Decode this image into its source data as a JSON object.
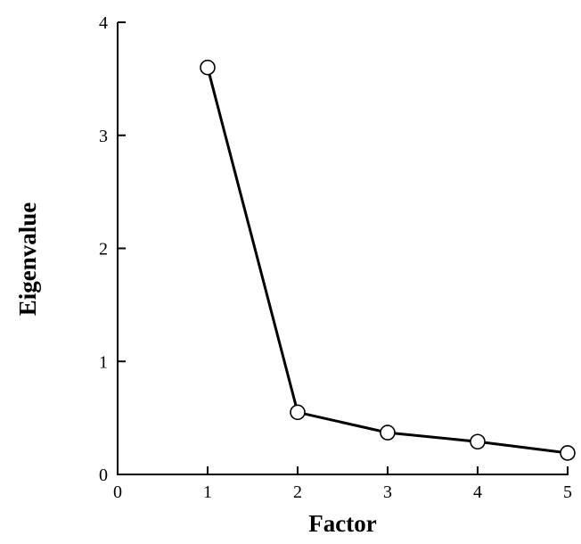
{
  "chart_data": {
    "type": "line",
    "title": "",
    "xlabel": "Factor",
    "ylabel": "Eigenvalue",
    "xlim": [
      0,
      5
    ],
    "ylim": [
      0,
      4
    ],
    "xticks": [
      "0",
      "1",
      "2",
      "3",
      "4",
      "5"
    ],
    "yticks": [
      "0",
      "1",
      "2",
      "3",
      "4"
    ],
    "grid": false,
    "marker": "open-circle",
    "series": [
      {
        "x": [
          1,
          2,
          3,
          4,
          5
        ],
        "y": [
          3.6,
          0.55,
          0.37,
          0.29,
          0.19
        ]
      }
    ]
  }
}
